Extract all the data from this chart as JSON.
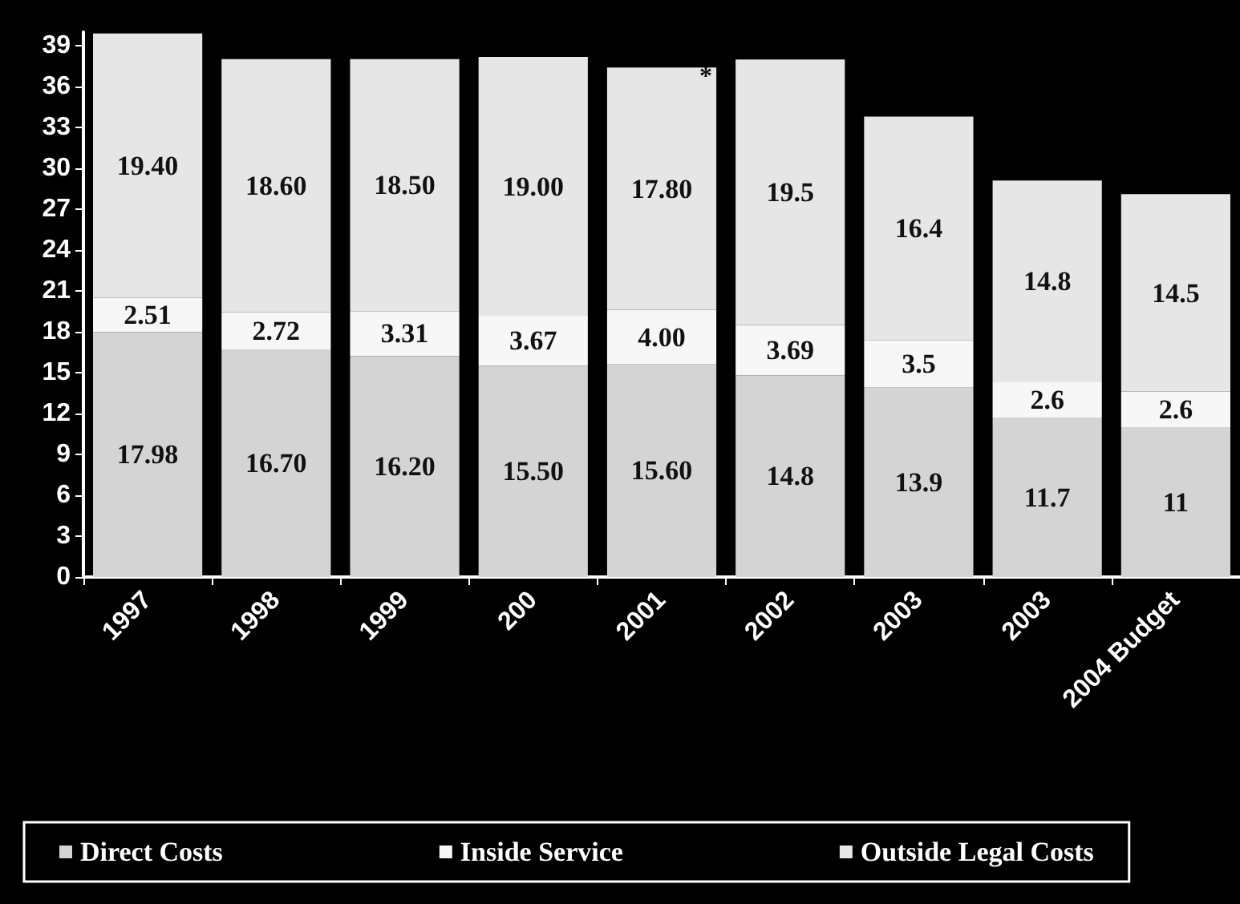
{
  "chart_data": {
    "type": "bar",
    "stacked": true,
    "categories": [
      "1997",
      "1998",
      "1999",
      "200",
      "2001",
      "2002",
      "2003",
      "2003",
      "2004 Budget"
    ],
    "series": [
      {
        "name": "Direct Costs",
        "color": "#d4d4d4",
        "values": [
          17.98,
          16.7,
          16.2,
          15.5,
          15.6,
          14.8,
          13.9,
          11.7,
          11
        ],
        "value_labels": [
          "17.98",
          "16.70",
          "16.20",
          "15.50",
          "15.60",
          "14.8",
          "13.9",
          "11.7",
          "11"
        ]
      },
      {
        "name": "Inside Service",
        "color": "#f7f7f7",
        "values": [
          2.51,
          2.72,
          3.31,
          3.67,
          4.0,
          3.69,
          3.5,
          2.6,
          2.6
        ],
        "value_labels": [
          "2.51",
          "2.72",
          "3.31",
          "3.67",
          "4.00",
          "3.69",
          "3.5",
          "2.6",
          "2.6"
        ]
      },
      {
        "name": "Outside Legal Costs",
        "color": "#e6e6e6",
        "values": [
          19.4,
          18.6,
          18.5,
          19.0,
          17.8,
          19.5,
          16.4,
          14.8,
          14.5
        ],
        "value_labels": [
          "19.40",
          "18.60",
          "18.50",
          "19.00",
          "17.80",
          "19.5",
          "16.4",
          "14.8",
          "14.5"
        ]
      }
    ],
    "ylim": [
      0,
      40
    ],
    "yticks": [
      0,
      3,
      6,
      9,
      12,
      15,
      18,
      21,
      24,
      27,
      30,
      33,
      36,
      39
    ],
    "grid": false,
    "legend": "bottom",
    "annotations": [
      "*"
    ]
  }
}
